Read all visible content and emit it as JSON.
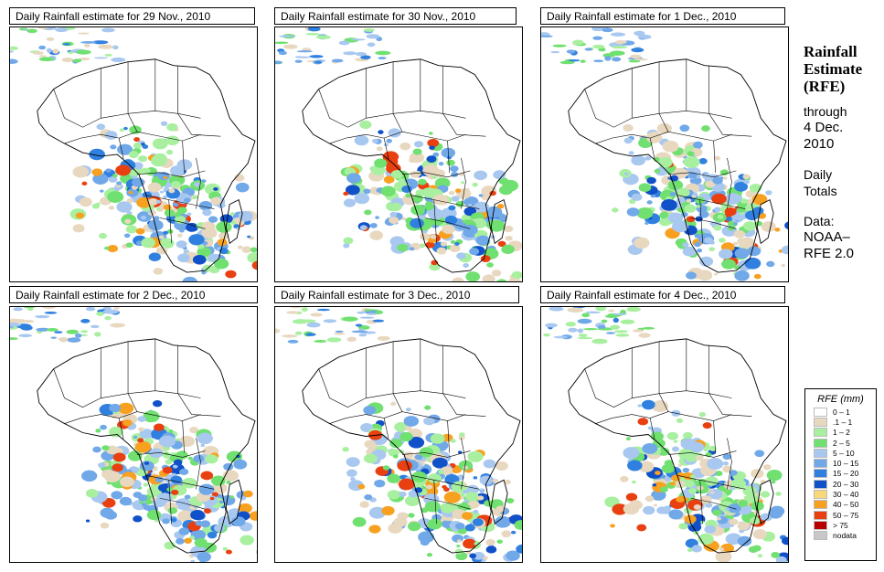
{
  "panels": [
    {
      "title": "Daily Rainfall estimate for  29 Nov., 2010",
      "intensity": 0.9
    },
    {
      "title": "Daily Rainfall estimate for  30 Nov., 2010",
      "intensity": 0.8
    },
    {
      "title": "Daily Rainfall estimate for  1 Dec., 2010",
      "intensity": 0.6
    },
    {
      "title": "Daily Rainfall estimate for  2 Dec., 2010",
      "intensity": 0.9
    },
    {
      "title": "Daily Rainfall estimate for  3 Dec., 2010",
      "intensity": 0.75
    },
    {
      "title": "Daily Rainfall estimate for  4 Dec., 2010",
      "intensity": 1.0
    }
  ],
  "side": {
    "title_line1": "Rainfall",
    "title_line2": "Estimate",
    "title_line3": "(RFE)",
    "through": "through",
    "date_line1": "4 Dec.",
    "date_line2": "2010",
    "totals_line1": "Daily",
    "totals_line2": "Totals",
    "data_line1": "Data:",
    "data_line2": "NOAA–",
    "data_line3": "RFE 2.0"
  },
  "legend": {
    "title": "RFE (mm)",
    "items": [
      {
        "label": "0 – 1",
        "color": "#ffffff"
      },
      {
        "label": ".1 – 1",
        "color": "#e8d8c0"
      },
      {
        "label": "1 – 2",
        "color": "#a8f0a0"
      },
      {
        "label": "2 – 5",
        "color": "#70e070"
      },
      {
        "label": "5 – 10",
        "color": "#a8c8f0"
      },
      {
        "label": "10 – 15",
        "color": "#70a8e8"
      },
      {
        "label": "15 – 20",
        "color": "#3080e0"
      },
      {
        "label": "20 – 30",
        "color": "#1050c8"
      },
      {
        "label": "30 – 40",
        "color": "#f8d878"
      },
      {
        "label": "40 – 50",
        "color": "#f8a020"
      },
      {
        "label": "50 – 75",
        "color": "#e84010"
      },
      {
        "label": "> 75",
        "color": "#b80000"
      },
      {
        "label": "nodata",
        "color": "#c8c8c8"
      }
    ]
  }
}
